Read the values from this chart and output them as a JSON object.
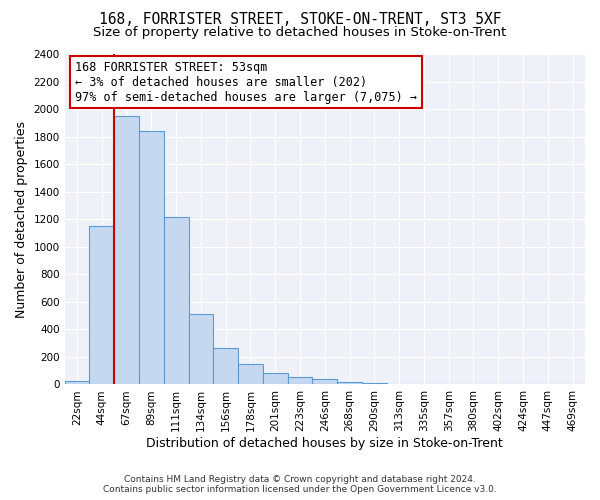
{
  "title": "168, FORRISTER STREET, STOKE-ON-TRENT, ST3 5XF",
  "subtitle": "Size of property relative to detached houses in Stoke-on-Trent",
  "xlabel": "Distribution of detached houses by size in Stoke-on-Trent",
  "ylabel": "Number of detached properties",
  "bar_labels": [
    "22sqm",
    "44sqm",
    "67sqm",
    "89sqm",
    "111sqm",
    "134sqm",
    "156sqm",
    "178sqm",
    "201sqm",
    "223sqm",
    "246sqm",
    "268sqm",
    "290sqm",
    "313sqm",
    "335sqm",
    "357sqm",
    "380sqm",
    "402sqm",
    "424sqm",
    "447sqm",
    "469sqm"
  ],
  "bar_values": [
    25,
    1150,
    1950,
    1840,
    1215,
    515,
    265,
    148,
    80,
    52,
    38,
    20,
    8,
    3,
    2,
    1,
    1,
    0,
    0,
    0,
    0
  ],
  "bar_color": "#c5d8f0",
  "bar_edge_color": "#5b9bd5",
  "vline_x": 1.5,
  "vline_color": "#cc0000",
  "ylim": [
    0,
    2400
  ],
  "yticks": [
    0,
    200,
    400,
    600,
    800,
    1000,
    1200,
    1400,
    1600,
    1800,
    2000,
    2200,
    2400
  ],
  "annotation_title": "168 FORRISTER STREET: 53sqm",
  "annotation_line1": "← 3% of detached houses are smaller (202)",
  "annotation_line2": "97% of semi-detached houses are larger (7,075) →",
  "annotation_box_color": "#ffffff",
  "annotation_box_edge": "#cc0000",
  "footer_line1": "Contains HM Land Registry data © Crown copyright and database right 2024.",
  "footer_line2": "Contains public sector information licensed under the Open Government Licence v3.0.",
  "title_fontsize": 10.5,
  "subtitle_fontsize": 9.5,
  "axis_label_fontsize": 9,
  "tick_fontsize": 7.5,
  "annotation_fontsize": 8.5,
  "footer_fontsize": 6.5
}
